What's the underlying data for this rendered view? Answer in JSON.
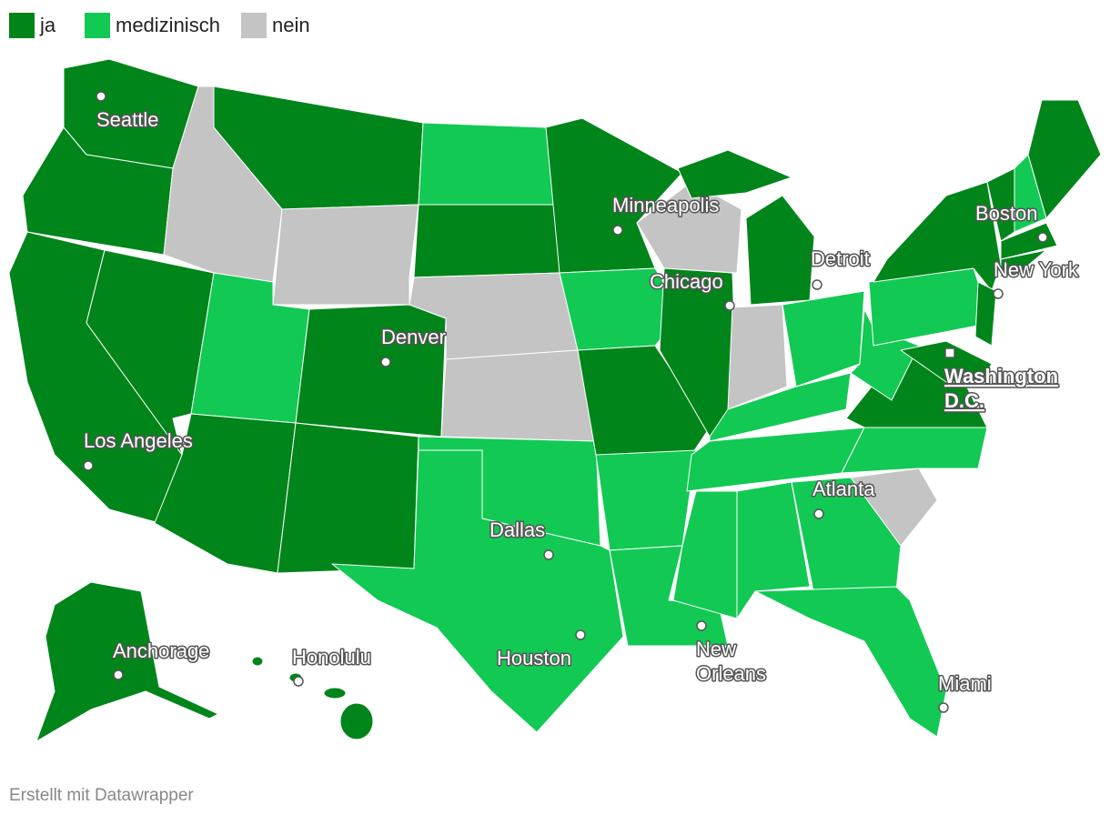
{
  "legend": [
    {
      "label": "ja",
      "color": "#00851a"
    },
    {
      "label": "medizinisch",
      "color": "#12c954"
    },
    {
      "label": "nein",
      "color": "#c4c4c4"
    }
  ],
  "cities": [
    "Seattle",
    "Minneapolis",
    "Boston",
    "Detroit",
    "Chicago",
    "New York",
    "Denver",
    "Washington D.C.",
    "Los Angeles",
    "Atlanta",
    "Dallas",
    "Anchorage",
    "Honolulu",
    "Houston",
    "New Orleans",
    "Miami"
  ],
  "footer": "Erstellt mit Datawrapper"
}
